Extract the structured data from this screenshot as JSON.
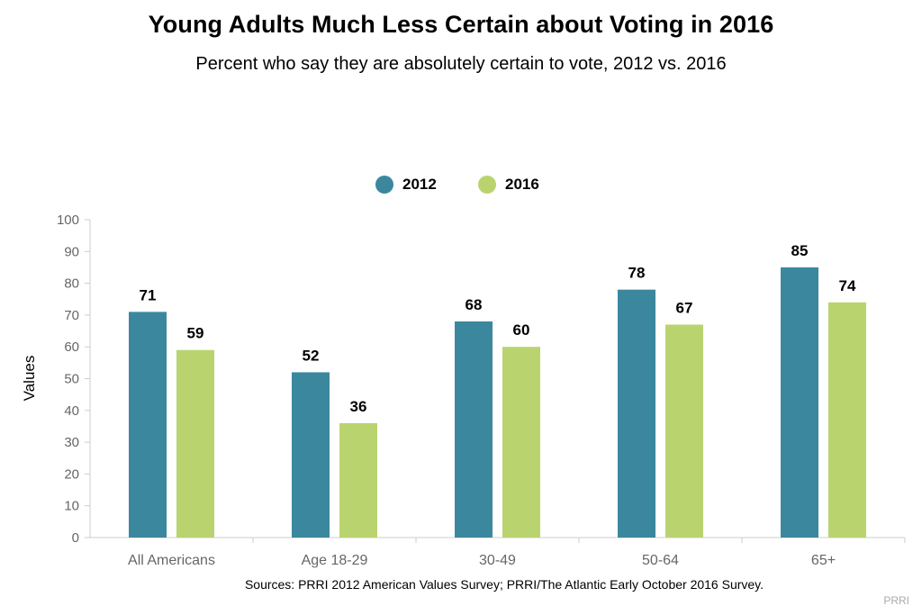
{
  "title": "Young Adults Much Less Certain about Voting in 2016",
  "subtitle": "Percent who say they are absolutely certain to vote, 2012 vs. 2016",
  "source": "Sources: PRRI 2012 American Values Survey; PRRI/The Atlantic Early October 2016 Survey.",
  "credit": "PRRI",
  "colors": {
    "series_2012": "#3b889e",
    "series_2016": "#b9d46f",
    "axis": "#cccccc",
    "tick_text": "#666666"
  },
  "chart_data": {
    "type": "bar",
    "categories": [
      "All Americans",
      "Age 18-29",
      "30-49",
      "50-64",
      "65+"
    ],
    "series": [
      {
        "name": "2012",
        "values": [
          71,
          52,
          68,
          78,
          85
        ]
      },
      {
        "name": "2016",
        "values": [
          59,
          36,
          60,
          67,
          74
        ]
      }
    ],
    "ylabel": "Values",
    "xlabel": "",
    "ylim": [
      0,
      100
    ],
    "yticks": [
      0,
      10,
      20,
      30,
      40,
      50,
      60,
      70,
      80,
      90,
      100
    ],
    "legend_position": "top-center",
    "grid": false,
    "data_labels": true
  }
}
